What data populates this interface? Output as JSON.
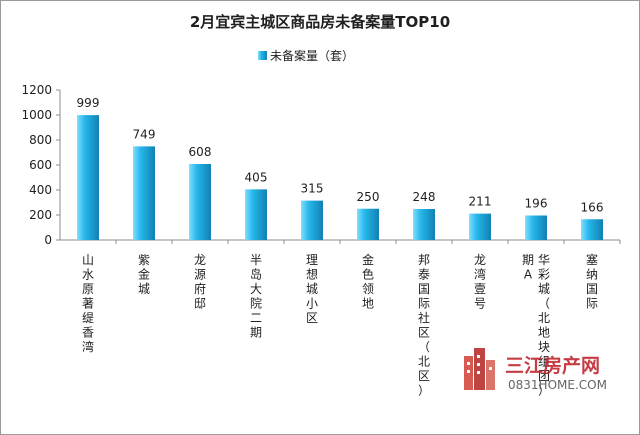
{
  "chart_data": {
    "type": "bar",
    "title": "2月宜宾主城区商品房未备案量TOP10",
    "legend": "未备案量（套）",
    "legend_position": "top-center",
    "categories": [
      "山水原著 缇香湾",
      "紫金城",
      "龙源府邸",
      "半岛大院二期",
      "理想城小区",
      "金色领地",
      "邦泰国际社区（北区）",
      "龙湾壹号",
      "华彩城（北地块组团）期A",
      "塞纳国际"
    ],
    "values": [
      999,
      749,
      608,
      405,
      315,
      250,
      248,
      211,
      196,
      166
    ],
    "value_labels": [
      "999",
      "749",
      "608",
      "405",
      "315",
      "250",
      "248",
      "211",
      "196",
      "166"
    ],
    "ylim": [
      0,
      1200
    ],
    "yticks": [
      0,
      200,
      400,
      600,
      800,
      1000,
      1200
    ],
    "ytick_labels": [
      "0",
      "200",
      "400",
      "600",
      "800",
      "1000",
      "1200"
    ],
    "grid": false,
    "colors": {
      "bar_light": "#7fe0ff",
      "bar_mid": "#27b6ea",
      "bar_dark": "#1181b2",
      "axis": "#8c8c8c"
    }
  },
  "watermark": {
    "name": "三江房产网",
    "url": "0831HOME.COM"
  }
}
